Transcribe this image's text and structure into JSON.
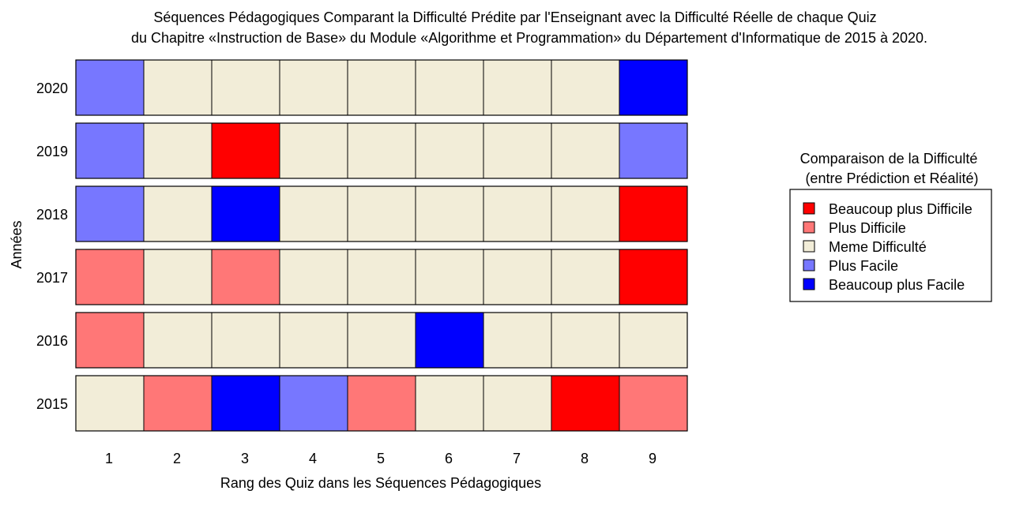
{
  "chart_data": {
    "type": "heatmap",
    "title_lines": [
      "Séquences Pédagogiques Comparant la Difficulté Prédite par l'Enseignant avec la Difficulté Réelle de chaque Quiz",
      "du Chapitre «Instruction de Base» du Module «Algorithme et Programmation» du Département d'Informatique de 2015 à 2020."
    ],
    "xlabel": "Rang des Quiz dans les Séquences Pédagogiques",
    "ylabel": "Années",
    "x": [
      "1",
      "2",
      "3",
      "4",
      "5",
      "6",
      "7",
      "8",
      "9"
    ],
    "years": [
      "2020",
      "2019",
      "2018",
      "2017",
      "2016",
      "2015"
    ],
    "legend": {
      "title_lines": [
        "Comparaison de la Difficulté",
        "(entre Prédiction et Réalité)"
      ],
      "position": "right",
      "items": [
        {
          "label": "Beaucoup plus Difficile",
          "color": "#ff0000"
        },
        {
          "label": "Plus Difficile",
          "color": "#ff7777"
        },
        {
          "label": "Meme Difficulté",
          "color": "#f2edd8"
        },
        {
          "label": "Plus Facile",
          "color": "#7777ff"
        },
        {
          "label": "Beaucoup plus Facile",
          "color": "#0000ff"
        }
      ]
    },
    "rows": [
      {
        "year": "2020",
        "values": [
          "Plus Facile",
          "Meme Difficulté",
          "Meme Difficulté",
          "Meme Difficulté",
          "Meme Difficulté",
          "Meme Difficulté",
          "Meme Difficulté",
          "Meme Difficulté",
          "Beaucoup plus Facile"
        ]
      },
      {
        "year": "2019",
        "values": [
          "Plus Facile",
          "Meme Difficulté",
          "Beaucoup plus Difficile",
          "Meme Difficulté",
          "Meme Difficulté",
          "Meme Difficulté",
          "Meme Difficulté",
          "Meme Difficulté",
          "Plus Facile"
        ]
      },
      {
        "year": "2018",
        "values": [
          "Plus Facile",
          "Meme Difficulté",
          "Beaucoup plus Facile",
          "Meme Difficulté",
          "Meme Difficulté",
          "Meme Difficulté",
          "Meme Difficulté",
          "Meme Difficulté",
          "Beaucoup plus Difficile"
        ]
      },
      {
        "year": "2017",
        "values": [
          "Plus Difficile",
          "Meme Difficulté",
          "Plus Difficile",
          "Meme Difficulté",
          "Meme Difficulté",
          "Meme Difficulté",
          "Meme Difficulté",
          "Meme Difficulté",
          "Beaucoup plus Difficile"
        ]
      },
      {
        "year": "2016",
        "values": [
          "Plus Difficile",
          "Meme Difficulté",
          "Meme Difficulté",
          "Meme Difficulté",
          "Meme Difficulté",
          "Beaucoup plus Facile",
          "Meme Difficulté",
          "Meme Difficulté",
          "Meme Difficulté"
        ]
      },
      {
        "year": "2015",
        "values": [
          "Meme Difficulté",
          "Plus Difficile",
          "Beaucoup plus Facile",
          "Plus Facile",
          "Plus Difficile",
          "Meme Difficulté",
          "Meme Difficulté",
          "Beaucoup plus Difficile",
          "Plus Difficile"
        ]
      }
    ],
    "grid": false
  }
}
